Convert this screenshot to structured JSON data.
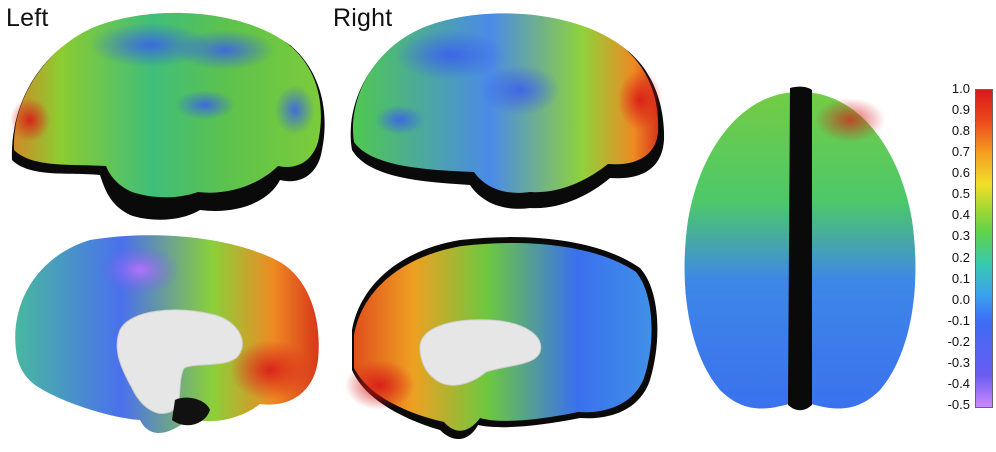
{
  "labels": {
    "left": "Left",
    "right": "Right"
  },
  "colorbar": {
    "ticks": [
      "1.0",
      "0.9",
      "0.8",
      "0.7",
      "0.6",
      "0.5",
      "0.4",
      "0.3",
      "0.2",
      "0.1",
      "0.0",
      "-0.1",
      "-0.2",
      "-0.3",
      "-0.4",
      "-0.5"
    ],
    "range": [
      -0.5,
      1.0
    ],
    "colors": [
      "#cc88ff",
      "#6a5cf0",
      "#3d6cf5",
      "#3aa0f0",
      "#38c9b0",
      "#5ed24a",
      "#a8d832",
      "#f0e02a",
      "#f4a020",
      "#ee4a1c",
      "#d81818"
    ]
  }
}
